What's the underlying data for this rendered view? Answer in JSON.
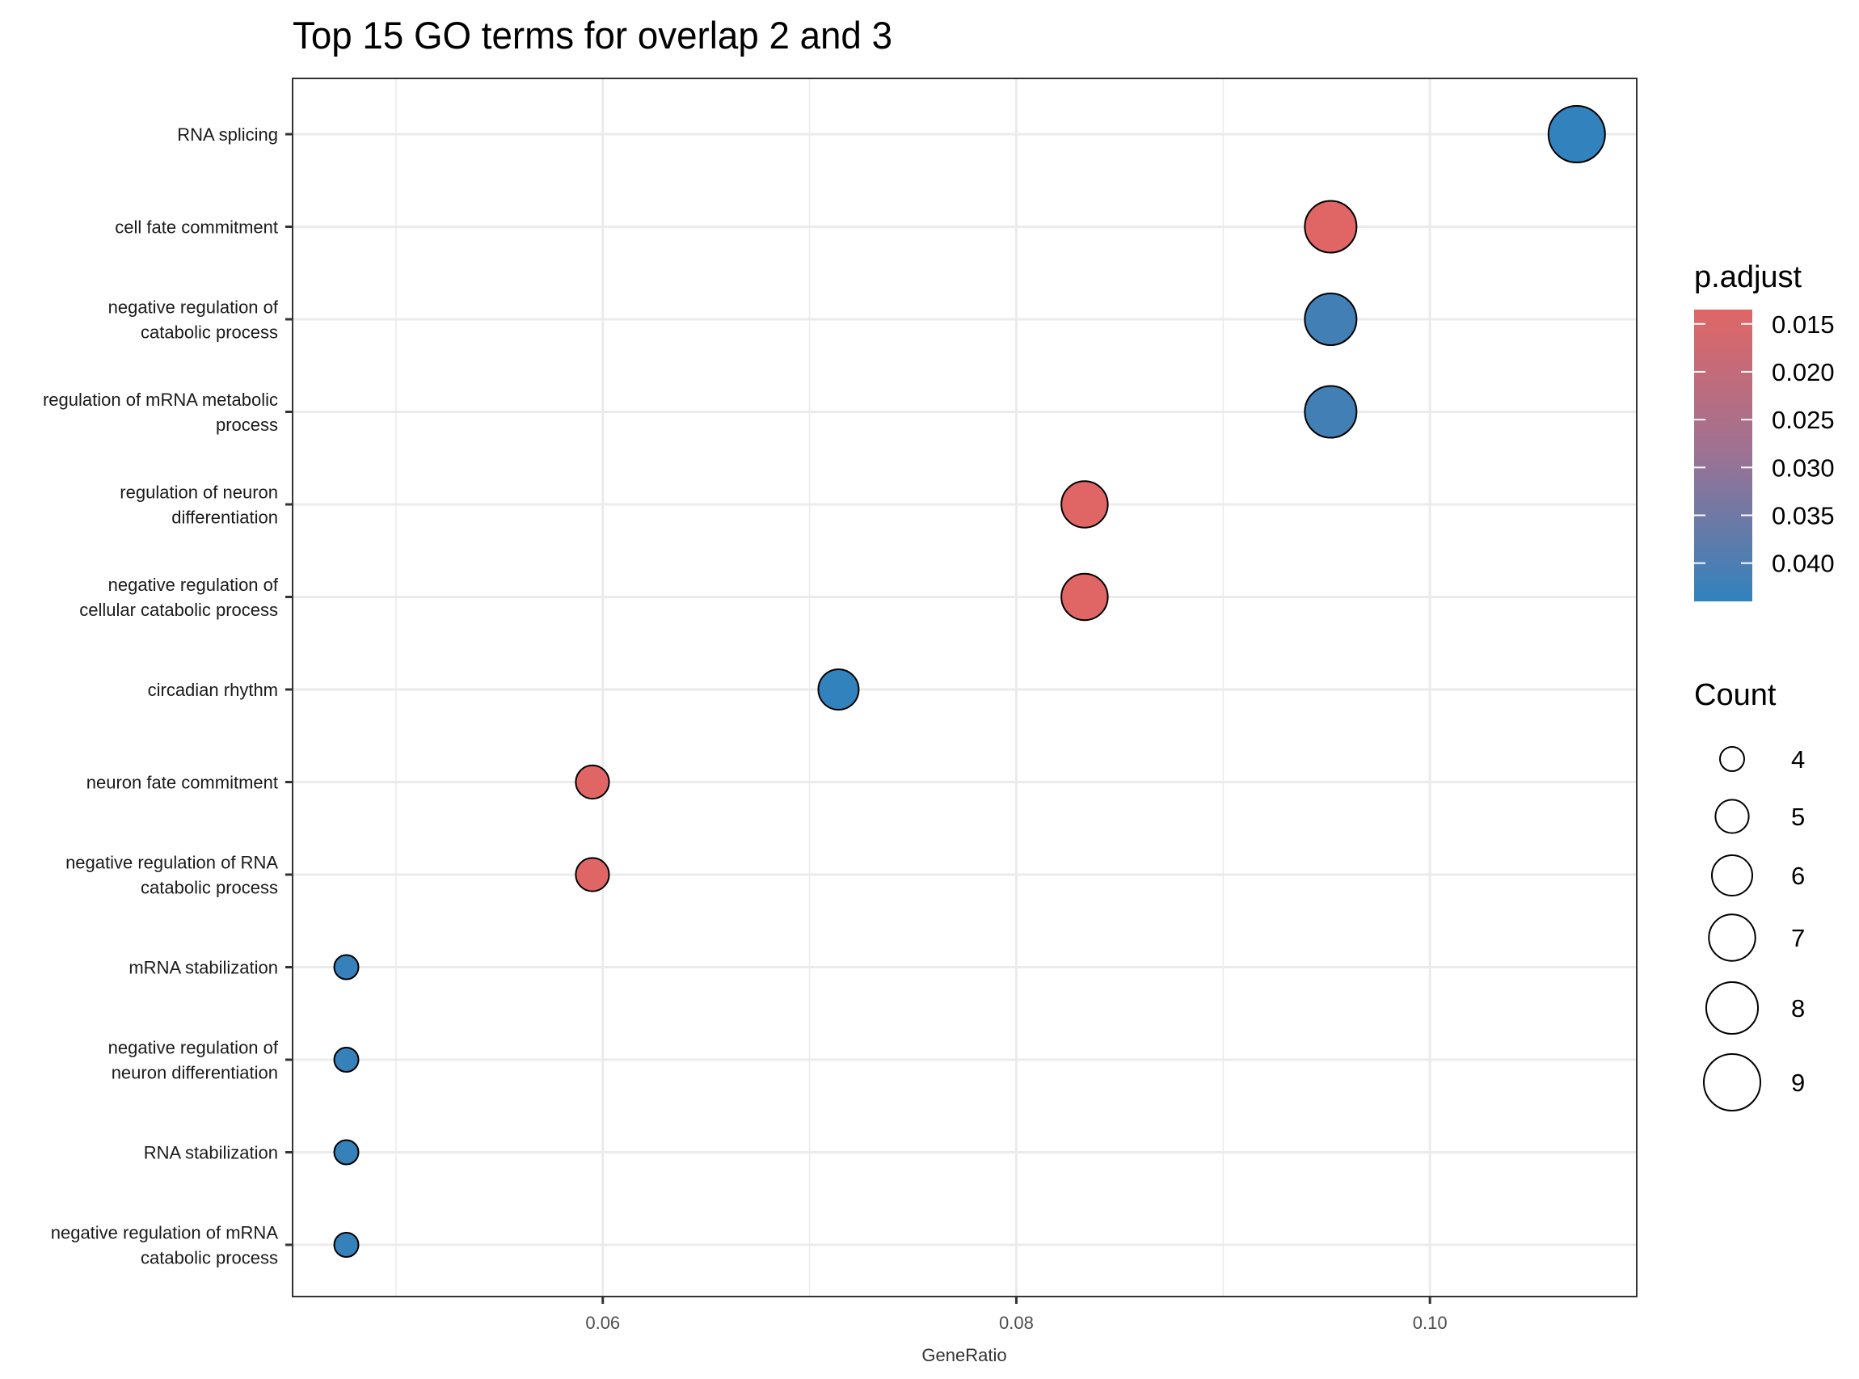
{
  "chart_data": {
    "type": "scatter",
    "title": "Top 15 GO terms for overlap 2 and 3",
    "xlabel": "GeneRatio",
    "ylabel": "",
    "xlim": [
      0.045,
      0.11
    ],
    "x_ticks": [
      0.06,
      0.08,
      0.1
    ],
    "x_tick_labels": [
      "0.06",
      "0.08",
      "0.10"
    ],
    "grid": true,
    "legend_position": "right",
    "points": [
      {
        "term": "RNA splicing",
        "x": 0.1071,
        "count": 9,
        "p_adjust": 0.044
      },
      {
        "term": "cell fate commitment",
        "x": 0.0952,
        "count": 8,
        "p_adjust": 0.0135
      },
      {
        "term": "negative regulation of catabolic process",
        "x": 0.0952,
        "count": 8,
        "p_adjust": 0.041
      },
      {
        "term": "regulation of mRNA metabolic process",
        "x": 0.0952,
        "count": 8,
        "p_adjust": 0.041
      },
      {
        "term": "regulation of neuron differentiation",
        "x": 0.0833,
        "count": 7,
        "p_adjust": 0.0135
      },
      {
        "term": "negative regulation of cellular catabolic process",
        "x": 0.0833,
        "count": 7,
        "p_adjust": 0.0135
      },
      {
        "term": "circadian rhythm",
        "x": 0.0714,
        "count": 6,
        "p_adjust": 0.044
      },
      {
        "term": "neuron fate commitment",
        "x": 0.0595,
        "count": 5,
        "p_adjust": 0.0135
      },
      {
        "term": "negative regulation of RNA catabolic process",
        "x": 0.0595,
        "count": 5,
        "p_adjust": 0.0135
      },
      {
        "term": "mRNA stabilization",
        "x": 0.0476,
        "count": 4,
        "p_adjust": 0.043
      },
      {
        "term": "negative regulation of neuron differentiation",
        "x": 0.0476,
        "count": 4,
        "p_adjust": 0.043
      },
      {
        "term": "RNA stabilization",
        "x": 0.0476,
        "count": 4,
        "p_adjust": 0.043
      },
      {
        "term": "negative regulation of mRNA catabolic process",
        "x": 0.0476,
        "count": 4,
        "p_adjust": 0.043
      }
    ],
    "y_labels": [
      [
        "RNA splicing"
      ],
      [
        "cell fate commitment"
      ],
      [
        "negative regulation of",
        "catabolic process"
      ],
      [
        "regulation of mRNA metabolic",
        "process"
      ],
      [
        "regulation of neuron",
        "differentiation"
      ],
      [
        "negative regulation of",
        "cellular catabolic process"
      ],
      [
        "circadian rhythm"
      ],
      [
        "neuron fate commitment"
      ],
      [
        "negative regulation of RNA",
        "catabolic process"
      ],
      [
        "mRNA stabilization"
      ],
      [
        "negative regulation of",
        "neuron differentiation"
      ],
      [
        "RNA stabilization"
      ],
      [
        "negative regulation of mRNA",
        "catabolic process"
      ]
    ],
    "color_legend": {
      "title": "p.adjust",
      "range": [
        0.0135,
        0.044
      ],
      "ticks": [
        0.015,
        0.02,
        0.025,
        0.03,
        0.035,
        0.04
      ],
      "tick_labels": [
        "0.015",
        "0.020",
        "0.025",
        "0.030",
        "0.035",
        "0.040"
      ],
      "low_color": "#E06666",
      "high_color": "#3182BD"
    },
    "size_legend": {
      "title": "Count",
      "values": [
        4,
        5,
        6,
        7,
        8,
        9
      ],
      "labels": [
        "4",
        "5",
        "6",
        "7",
        "8",
        "9"
      ]
    }
  }
}
